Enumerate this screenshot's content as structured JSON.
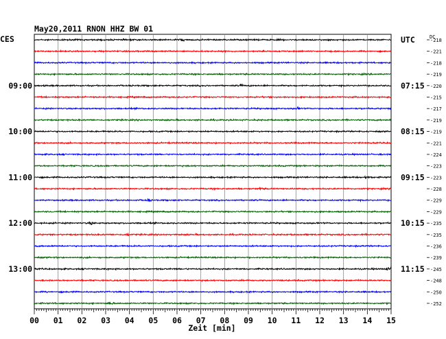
{
  "chart_data": {
    "type": "line",
    "title": "May20,2011   RNON HHZ BW 01",
    "left_zone": "CES",
    "right_zone": "UTC",
    "dc_header": "DC",
    "xlabel": "Zeit [min]",
    "xlim": [
      0,
      15
    ],
    "x_ticks": [
      "00",
      "01",
      "02",
      "03",
      "04",
      "05",
      "06",
      "07",
      "08",
      "09",
      "10",
      "11",
      "12",
      "13",
      "14",
      "15"
    ],
    "trace_colors": [
      "#000000",
      "#ff0000",
      "#0000ff",
      "#006400"
    ],
    "left_time_labels": [
      {
        "trace": 4,
        "label": "09:00"
      },
      {
        "trace": 8,
        "label": "10:00"
      },
      {
        "trace": 12,
        "label": "11:00"
      },
      {
        "trace": 16,
        "label": "12:00"
      },
      {
        "trace": 20,
        "label": "13:00"
      }
    ],
    "right_time_labels": [
      {
        "trace": 0,
        "label": "UTC"
      },
      {
        "trace": 4,
        "label": "07:15"
      },
      {
        "trace": 8,
        "label": "08:15"
      },
      {
        "trace": 12,
        "label": "09:15"
      },
      {
        "trace": 16,
        "label": "10:15"
      },
      {
        "trace": 20,
        "label": "11:15"
      }
    ],
    "dc_values": [
      "-218",
      "-221",
      "-218",
      "-219",
      "-220",
      "-215",
      "-217",
      "-219",
      "-219",
      "-221",
      "-224",
      "-223",
      "-223",
      "-228",
      "-229",
      "-229",
      "-235",
      "-235",
      "-236",
      "-239",
      "-245",
      "-248",
      "-250",
      "-252"
    ],
    "events": [
      {
        "trace": 0,
        "minute": 6.2,
        "amp": 2.2
      },
      {
        "trace": 4,
        "minute": 8.7,
        "amp": 1.8
      },
      {
        "trace": 6,
        "minute": 11.1,
        "amp": 2.0
      },
      {
        "trace": 12,
        "minute": 14.0,
        "amp": 2.2
      },
      {
        "trace": 13,
        "minute": 9.5,
        "amp": 1.6
      },
      {
        "trace": 14,
        "minute": 4.8,
        "amp": 1.8
      },
      {
        "trace": 16,
        "minute": 2.4,
        "amp": 2.6
      },
      {
        "trace": 17,
        "minute": 3.9,
        "amp": 2.0
      },
      {
        "trace": 20,
        "minute": 14.9,
        "amp": 3.2
      },
      {
        "trace": 23,
        "minute": 3.2,
        "amp": 2.4
      }
    ]
  }
}
